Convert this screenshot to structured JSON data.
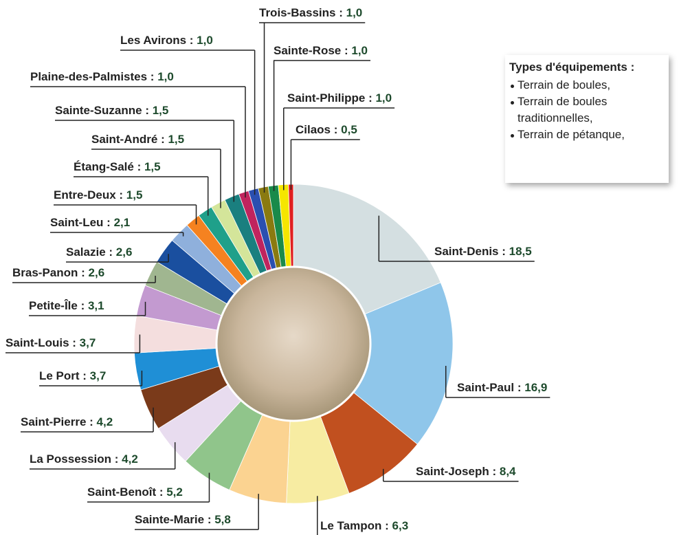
{
  "chart_data": {
    "type": "donut",
    "categories": [
      "Saint-Denis",
      "Saint-Paul",
      "Saint-Joseph",
      "Le Tampon",
      "Sainte-Marie",
      "Saint-Benoît",
      "La Possession",
      "Saint-Pierre",
      "Le Port",
      "Saint-Louis",
      "Petite-Île",
      "Bras-Panon",
      "Salazie",
      "Saint-Leu",
      "Entre-Deux",
      "Étang-Salé",
      "Saint-André",
      "Sainte-Suzanne",
      "Plaine-des-Palmistes",
      "Les Avirons",
      "Trois-Bassins",
      "Sainte-Rose",
      "Saint-Philippe",
      "Cilaos"
    ],
    "values": [
      18.5,
      16.9,
      8.4,
      6.3,
      5.8,
      5.2,
      4.2,
      4.2,
      3.7,
      3.7,
      3.1,
      2.6,
      2.6,
      2.1,
      1.5,
      1.5,
      1.5,
      1.5,
      1.0,
      1.0,
      1.0,
      1.0,
      1.0,
      0.5
    ],
    "value_labels": [
      "18,5",
      "16,9",
      "8,4",
      "6,3",
      "5,8",
      "5,2",
      "4,2",
      "4,2",
      "3,7",
      "3,7",
      "3,1",
      "2,6",
      "2,6",
      "2,1",
      "1,5",
      "1,5",
      "1,5",
      "1,5",
      "1,0",
      "1,0",
      "1,0",
      "1,0",
      "1,0",
      "0,5"
    ],
    "separator": " : ",
    "colors": [
      "#d4dfe1",
      "#8fc6ea",
      "#c1501f",
      "#f7eca2",
      "#fbd391",
      "#90c58b",
      "#e8dcef",
      "#7a3a1a",
      "#1f8fd6",
      "#f4dede",
      "#c39ad0",
      "#a0b690",
      "#1a4f9f",
      "#8fb0dc",
      "#f58220",
      "#1fa08a",
      "#d4e59a",
      "#1a7f7f",
      "#c0245e",
      "#2a4fb0",
      "#8a7a10",
      "#1a8a4a",
      "#f5e600",
      "#e02020"
    ],
    "annotation": {
      "title": "Types d'équipements :",
      "items": [
        "Terrain de boules,",
        "Terrain de boules traditionnelles,",
        "Terrain de pétanque,"
      ]
    }
  }
}
